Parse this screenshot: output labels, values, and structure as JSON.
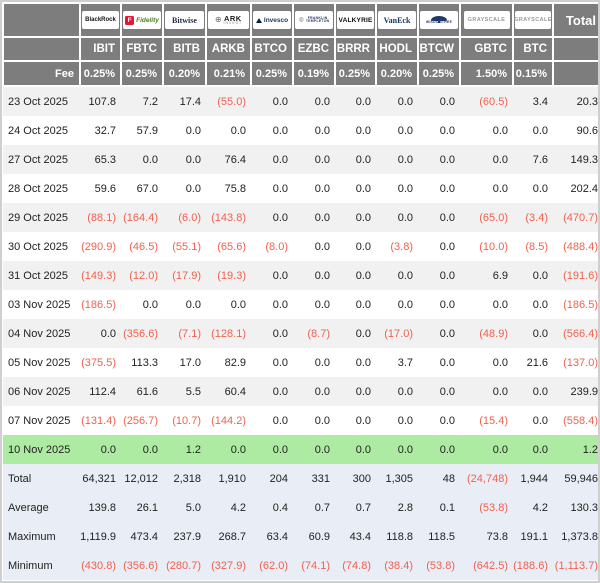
{
  "colors": {
    "header_bg": "#7d7d7d",
    "negative_text": "#f1614e",
    "positive_text": "#222222",
    "stripe_row": "#f1f1f2",
    "highlight_row_green": "#aeeba2",
    "summary_row_blue": "#e9edf6",
    "frame": "#cfcfcf"
  },
  "table": {
    "corner_label": "",
    "fee_label": "Fee",
    "total_label": "Total",
    "columns": [
      {
        "id": "ibit",
        "logo": "blackrock",
        "logo_text": "BlackRock",
        "ticker": "IBIT",
        "fee": "0.25%"
      },
      {
        "id": "fbtc",
        "logo": "fidelity",
        "logo_icon_text": "F",
        "logo_text": "Fidelity",
        "ticker": "FBTC",
        "fee": "0.25%"
      },
      {
        "id": "bitb",
        "logo": "bitwise",
        "logo_text": "Bitwise",
        "ticker": "BITB",
        "fee": "0.20%"
      },
      {
        "id": "arkb",
        "logo": "ark",
        "logo_lines": [
          "ARK",
          "INVEST"
        ],
        "ticker": "ARKB",
        "fee": "0.21%"
      },
      {
        "id": "btco",
        "logo": "invesco",
        "logo_text": "Invesco",
        "ticker": "BTCO",
        "fee": "0.25%"
      },
      {
        "id": "ezbc",
        "logo": "franklin",
        "logo_lines": [
          "FRANKLIN",
          "TEMPLETON"
        ],
        "ticker": "EZBC",
        "fee": "0.19%"
      },
      {
        "id": "brrr",
        "logo": "valkyrie",
        "logo_text": "VALKYRIE",
        "ticker": "BRRR",
        "fee": "0.25%"
      },
      {
        "id": "hodl",
        "logo": "vaneck",
        "logo_text": "VanEck",
        "ticker": "HODL",
        "fee": "0.20%"
      },
      {
        "id": "btcw",
        "logo": "wisdomtree",
        "logo_lines": [
          "WISDOMTREE"
        ],
        "ticker": "BTCW",
        "fee": "0.25%"
      },
      {
        "id": "gbtc",
        "logo": "grayscale",
        "logo_text": "GRAYSCALE",
        "ticker": "GBTC",
        "fee": "1.50%"
      },
      {
        "id": "btc",
        "logo": "grayscale",
        "logo_text": "GRAYSCALE",
        "ticker": "BTC",
        "fee": "0.15%"
      }
    ],
    "rows": [
      {
        "date": "23 Oct 2025",
        "values": [
          "107.8",
          "7.2",
          "17.4",
          "(55.0)",
          "0.0",
          "0.0",
          "0.0",
          "0.0",
          "0.0",
          "(60.5)",
          "3.4",
          "20.3"
        ],
        "highlight": false
      },
      {
        "date": "24 Oct 2025",
        "values": [
          "32.7",
          "57.9",
          "0.0",
          "0.0",
          "0.0",
          "0.0",
          "0.0",
          "0.0",
          "0.0",
          "0.0",
          "0.0",
          "90.6"
        ],
        "highlight": false
      },
      {
        "date": "27 Oct 2025",
        "values": [
          "65.3",
          "0.0",
          "0.0",
          "76.4",
          "0.0",
          "0.0",
          "0.0",
          "0.0",
          "0.0",
          "0.0",
          "7.6",
          "149.3"
        ],
        "highlight": false
      },
      {
        "date": "28 Oct 2025",
        "values": [
          "59.6",
          "67.0",
          "0.0",
          "75.8",
          "0.0",
          "0.0",
          "0.0",
          "0.0",
          "0.0",
          "0.0",
          "0.0",
          "202.4"
        ],
        "highlight": false
      },
      {
        "date": "29 Oct 2025",
        "values": [
          "(88.1)",
          "(164.4)",
          "(6.0)",
          "(143.8)",
          "0.0",
          "0.0",
          "0.0",
          "0.0",
          "0.0",
          "(65.0)",
          "(3.4)",
          "(470.7)"
        ],
        "highlight": false
      },
      {
        "date": "30 Oct 2025",
        "values": [
          "(290.9)",
          "(46.5)",
          "(55.1)",
          "(65.6)",
          "(8.0)",
          "0.0",
          "0.0",
          "(3.8)",
          "0.0",
          "(10.0)",
          "(8.5)",
          "(488.4)"
        ],
        "highlight": false
      },
      {
        "date": "31 Oct 2025",
        "values": [
          "(149.3)",
          "(12.0)",
          "(17.9)",
          "(19.3)",
          "0.0",
          "0.0",
          "0.0",
          "0.0",
          "0.0",
          "6.9",
          "0.0",
          "(191.6)"
        ],
        "highlight": false
      },
      {
        "date": "03 Nov 2025",
        "values": [
          "(186.5)",
          "0.0",
          "0.0",
          "0.0",
          "0.0",
          "0.0",
          "0.0",
          "0.0",
          "0.0",
          "0.0",
          "0.0",
          "(186.5)"
        ],
        "highlight": false
      },
      {
        "date": "04 Nov 2025",
        "values": [
          "0.0",
          "(356.6)",
          "(7.1)",
          "(128.1)",
          "0.0",
          "(8.7)",
          "0.0",
          "(17.0)",
          "0.0",
          "(48.9)",
          "0.0",
          "(566.4)"
        ],
        "highlight": false
      },
      {
        "date": "05 Nov 2025",
        "values": [
          "(375.5)",
          "113.3",
          "17.0",
          "82.9",
          "0.0",
          "0.0",
          "0.0",
          "3.7",
          "0.0",
          "0.0",
          "21.6",
          "(137.0)"
        ],
        "highlight": false
      },
      {
        "date": "06 Nov 2025",
        "values": [
          "112.4",
          "61.6",
          "5.5",
          "60.4",
          "0.0",
          "0.0",
          "0.0",
          "0.0",
          "0.0",
          "0.0",
          "0.0",
          "239.9"
        ],
        "highlight": false
      },
      {
        "date": "07 Nov 2025",
        "values": [
          "(131.4)",
          "(256.7)",
          "(10.7)",
          "(144.2)",
          "0.0",
          "0.0",
          "0.0",
          "0.0",
          "0.0",
          "(15.4)",
          "0.0",
          "(558.4)"
        ],
        "highlight": false
      },
      {
        "date": "10 Nov 2025",
        "values": [
          "0.0",
          "0.0",
          "1.2",
          "0.0",
          "0.0",
          "0.0",
          "0.0",
          "0.0",
          "0.0",
          "0.0",
          "0.0",
          "1.2"
        ],
        "highlight": true
      }
    ],
    "summary_rows": [
      {
        "label": "Total",
        "values": [
          "64,321",
          "12,012",
          "2,318",
          "1,910",
          "204",
          "331",
          "300",
          "1,305",
          "48",
          "(24,748)",
          "1,944",
          "59,946"
        ]
      },
      {
        "label": "Average",
        "values": [
          "139.8",
          "26.1",
          "5.0",
          "4.2",
          "0.4",
          "0.7",
          "0.7",
          "2.8",
          "0.1",
          "(53.8)",
          "4.2",
          "130.3"
        ]
      },
      {
        "label": "Maximum",
        "values": [
          "1,119.9",
          "473.4",
          "237.9",
          "268.7",
          "63.4",
          "60.9",
          "43.4",
          "118.8",
          "118.5",
          "73.8",
          "191.1",
          "1,373.8"
        ]
      },
      {
        "label": "Minimum",
        "values": [
          "(430.8)",
          "(356.6)",
          "(280.7)",
          "(327.9)",
          "(62.0)",
          "(74.1)",
          "(74.8)",
          "(38.4)",
          "(53.8)",
          "(642.5)",
          "(188.6)",
          "(1,113.7)"
        ]
      }
    ]
  }
}
